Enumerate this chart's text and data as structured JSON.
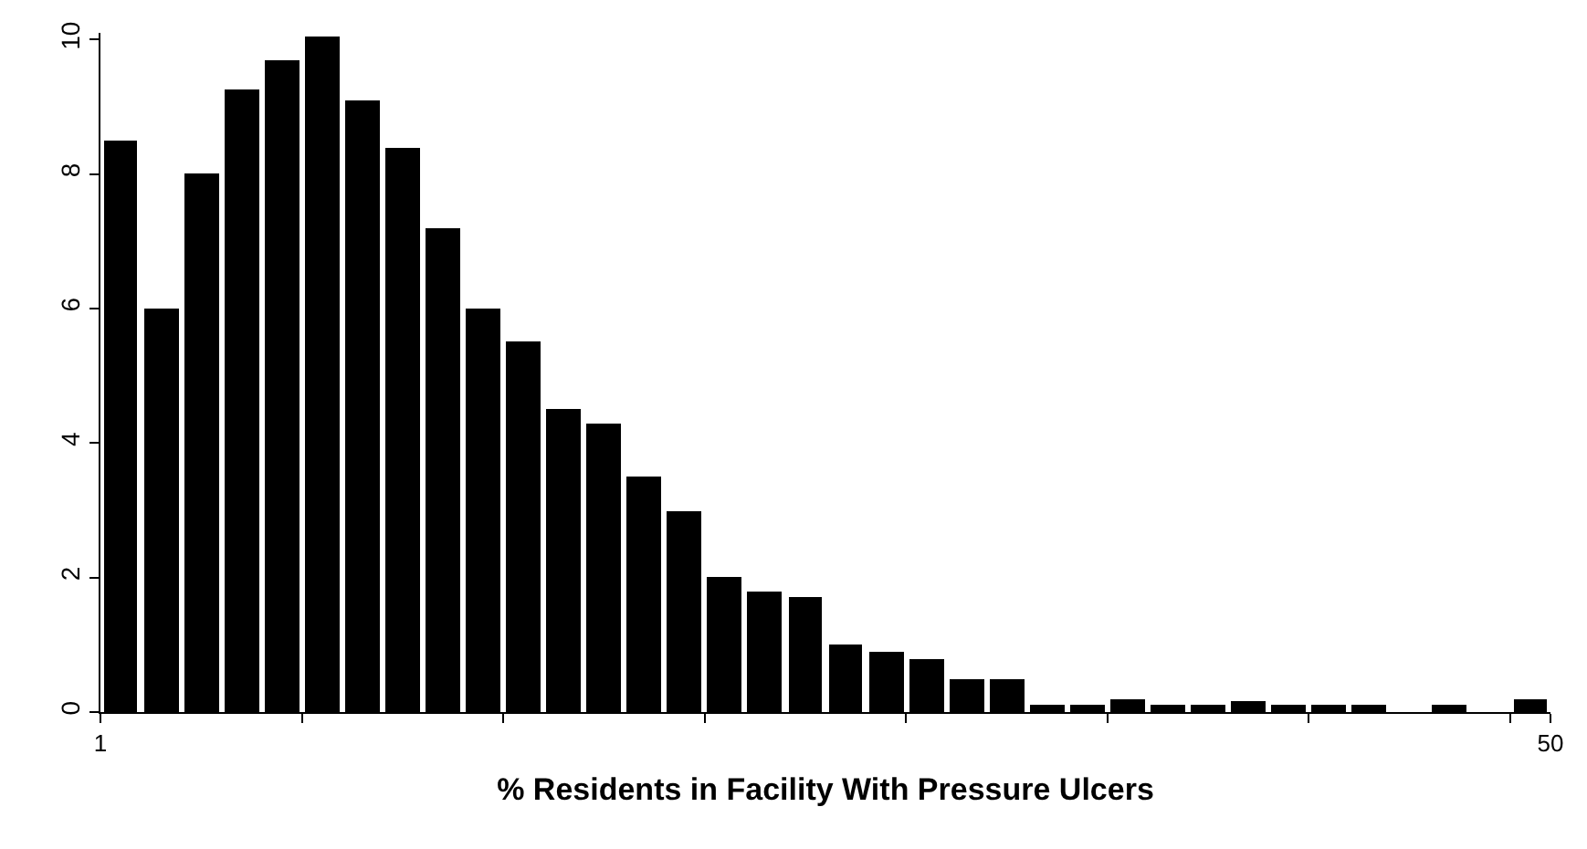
{
  "chart_data": {
    "type": "histogram",
    "xlabel": "% Residents in Facility With Pressure Ulcers",
    "bins": [
      1,
      2.36,
      3.72,
      5.08,
      6.44,
      7.81,
      9.17,
      10.53,
      11.89,
      13.25,
      14.61,
      15.97,
      17.33,
      18.69,
      20.06,
      21.42,
      22.78,
      24.14,
      25.5,
      26.86,
      28.22,
      29.58,
      30.94,
      32.31,
      33.67,
      35.03,
      36.39,
      37.75,
      39.11,
      40.47,
      41.83,
      43.19,
      44.56,
      45.92,
      47.28,
      48.64,
      50
    ],
    "values": [
      8.5,
      6,
      8,
      9.25,
      9.7,
      10.05,
      9.1,
      8.4,
      7.2,
      6,
      5.5,
      4.5,
      4.3,
      3.5,
      3,
      2,
      1.8,
      1.7,
      1,
      0.9,
      0.8,
      0.5,
      0.5,
      0.1,
      0.1,
      0.2,
      0.1,
      0.1,
      0.15,
      0.1,
      0.1,
      0.1,
      0,
      0.1,
      0,
      0.2
    ],
    "color": "#000000",
    "xlim": [
      1,
      50
    ],
    "xticks": [
      1,
      {
        "value": 7.81,
        "label": null
      },
      {
        "value": 14.61,
        "label": null
      },
      {
        "value": 21.42,
        "label": null
      },
      {
        "value": 28.22,
        "label": null
      },
      {
        "value": 35.03,
        "label": null
      },
      {
        "value": 41.83,
        "label": null
      },
      {
        "value": 48.64,
        "label": null
      },
      50
    ],
    "ylim": [
      0,
      10.1
    ],
    "yticks": [
      0,
      2,
      4,
      6,
      8,
      10
    ]
  }
}
